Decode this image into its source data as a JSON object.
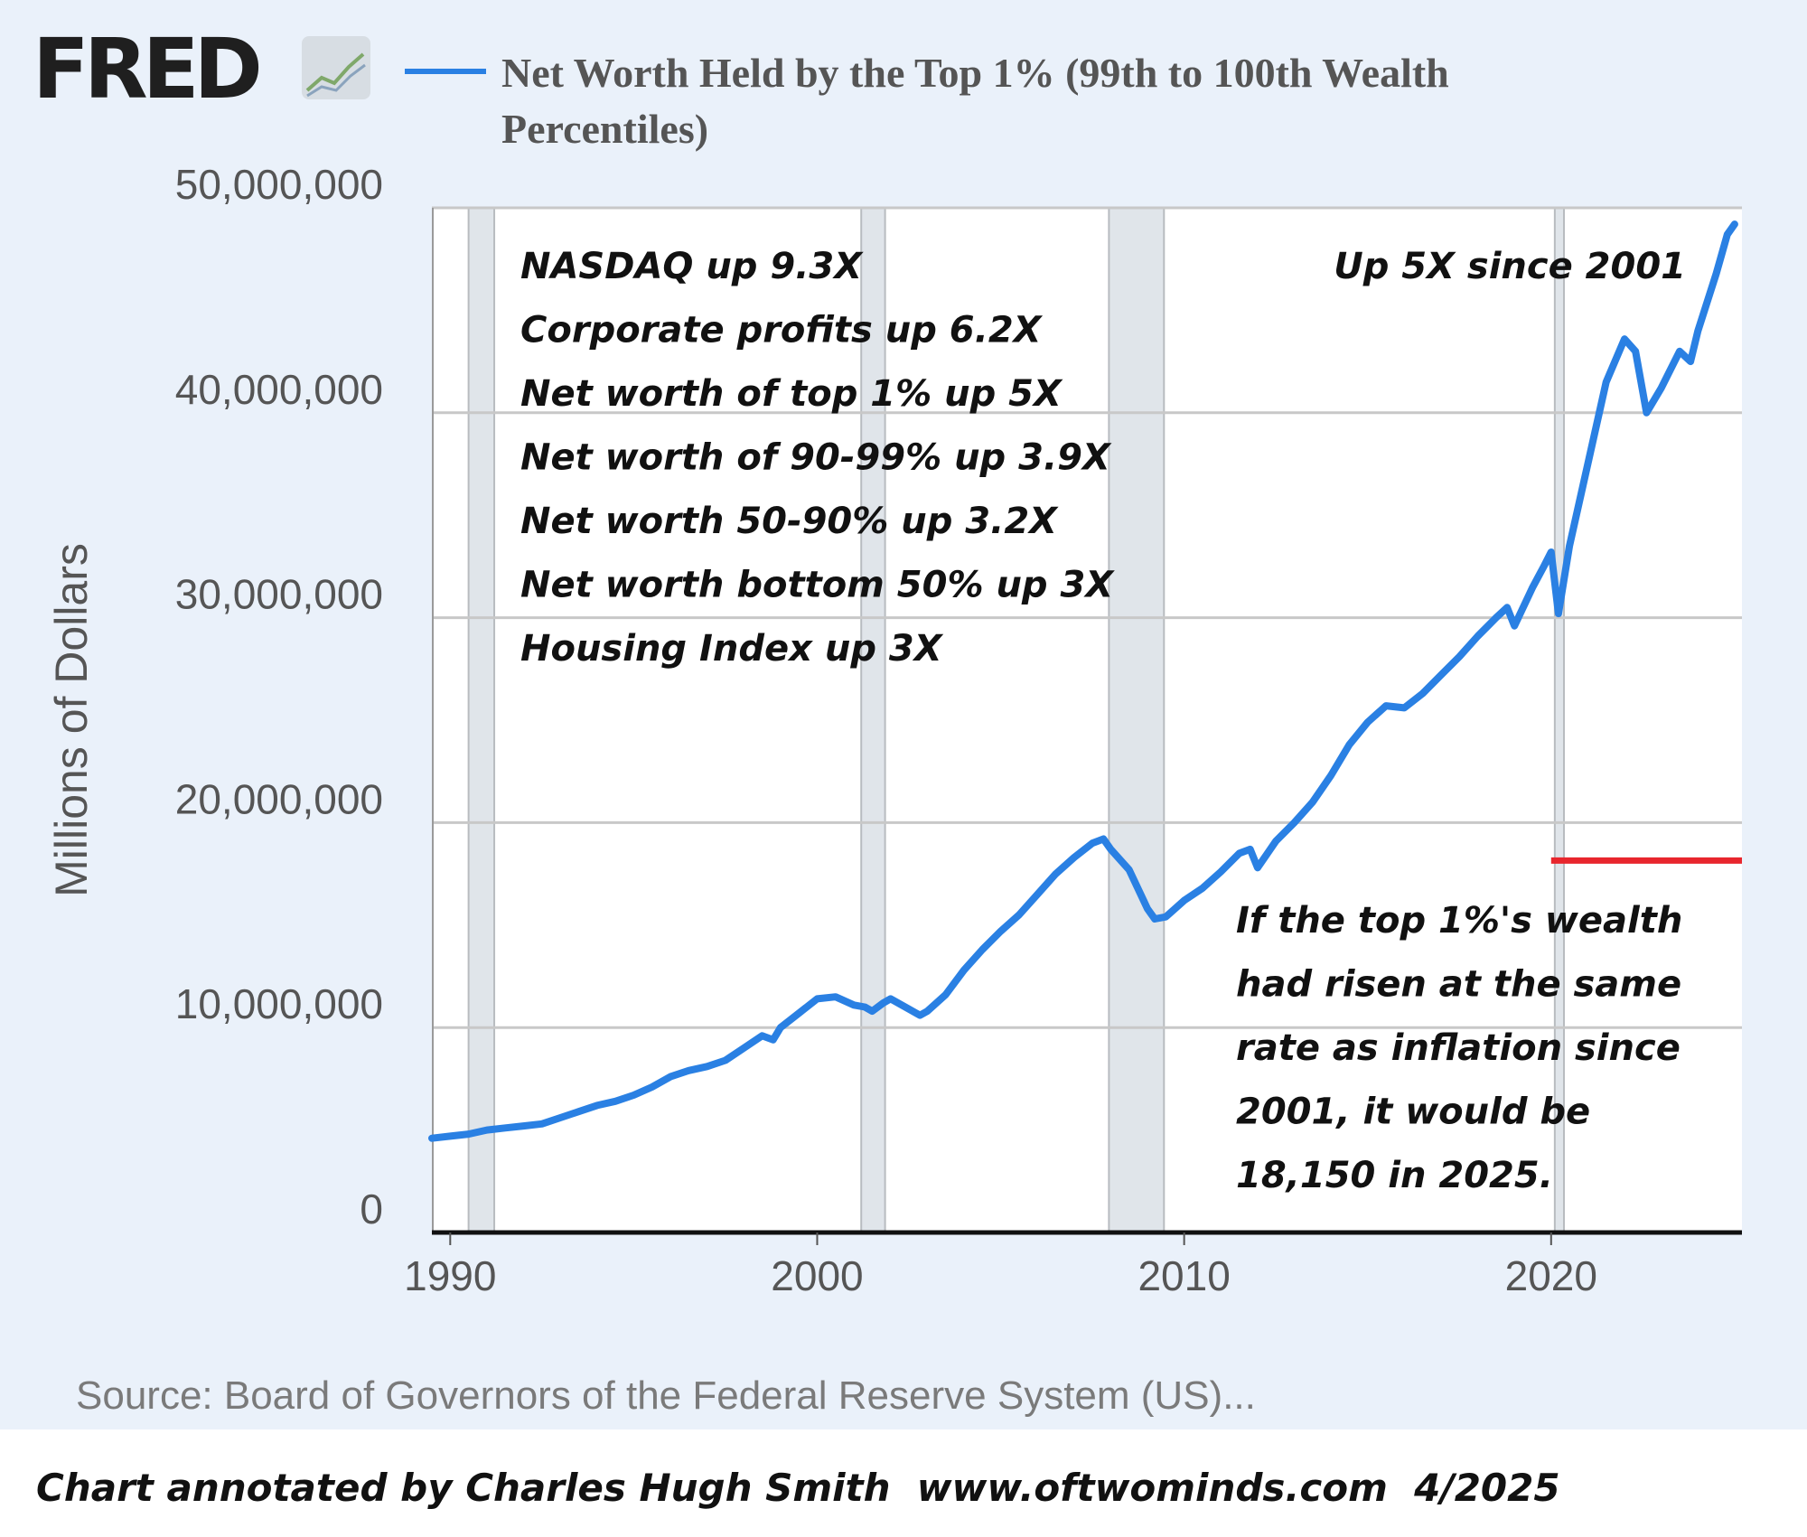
{
  "header": {
    "logo_text": "FRED",
    "logo_icon": "chart-line-icon"
  },
  "colors": {
    "panel_bg": "#eaf1fa",
    "series_line": "#2a80e3",
    "recession_band": "#e0e5ea",
    "gridline": "#c8c8c8",
    "reference_line": "#e8262d"
  },
  "chart_data": {
    "type": "line",
    "title": "Net Worth Held by the Top 1% (99th to 100th Wealth Percentiles)",
    "xlabel": "",
    "ylabel": "Millions of Dollars",
    "xlim": [
      1989.5,
      2025.2
    ],
    "ylim": [
      0,
      50000000
    ],
    "x_ticks": [
      1990,
      2000,
      2010,
      2020
    ],
    "x_tick_labels": [
      "1990",
      "2000",
      "2010",
      "2020"
    ],
    "y_ticks": [
      0,
      10000000,
      20000000,
      30000000,
      40000000,
      50000000
    ],
    "y_tick_labels": [
      "0",
      "10,000,000",
      "20,000,000",
      "30,000,000",
      "40,000,000",
      "50,000,000"
    ],
    "grid": true,
    "recessions": [
      [
        1990.5,
        1991.2
      ],
      [
        2001.2,
        2001.85
      ],
      [
        2007.95,
        2009.45
      ],
      [
        2020.1,
        2020.35
      ]
    ],
    "series": [
      {
        "name": "Net Worth Held by the Top 1% (99th to 100th Wealth Percentiles)",
        "x": [
          1989.5,
          1990.0,
          1990.5,
          1991.0,
          1991.5,
          1992.0,
          1992.5,
          1993.0,
          1993.5,
          1994.0,
          1994.5,
          1995.0,
          1995.5,
          1996.0,
          1996.5,
          1997.0,
          1997.5,
          1998.0,
          1998.5,
          1998.8,
          1999.0,
          1999.5,
          2000.0,
          2000.5,
          2001.0,
          2001.3,
          2001.5,
          2001.8,
          2002.0,
          2002.5,
          2002.8,
          2003.0,
          2003.5,
          2004.0,
          2004.5,
          2005.0,
          2005.5,
          2006.0,
          2006.5,
          2007.0,
          2007.5,
          2007.8,
          2008.0,
          2008.5,
          2009.0,
          2009.2,
          2009.5,
          2010.0,
          2010.5,
          2011.0,
          2011.5,
          2011.8,
          2012.0,
          2012.5,
          2013.0,
          2013.5,
          2014.0,
          2014.5,
          2015.0,
          2015.5,
          2016.0,
          2016.5,
          2017.0,
          2017.5,
          2018.0,
          2018.5,
          2018.8,
          2019.0,
          2019.5,
          2019.8,
          2020.0,
          2020.2,
          2020.5,
          2021.0,
          2021.5,
          2022.0,
          2022.3,
          2022.6,
          2023.0,
          2023.5,
          2023.8,
          2024.0,
          2024.5,
          2024.8,
          2025.0
        ],
        "values": [
          4600000,
          4700000,
          4800000,
          5000000,
          5100000,
          5200000,
          5300000,
          5600000,
          5900000,
          6200000,
          6400000,
          6700000,
          7100000,
          7600000,
          7900000,
          8100000,
          8400000,
          9000000,
          9600000,
          9400000,
          10000000,
          10700000,
          11400000,
          11500000,
          11100000,
          11000000,
          10800000,
          11200000,
          11400000,
          10900000,
          10600000,
          10800000,
          11600000,
          12800000,
          13800000,
          14700000,
          15500000,
          16500000,
          17500000,
          18300000,
          19000000,
          19200000,
          18700000,
          17700000,
          15800000,
          15300000,
          15400000,
          16200000,
          16800000,
          17600000,
          18500000,
          18700000,
          17800000,
          19100000,
          20000000,
          21000000,
          22300000,
          23800000,
          24900000,
          25700000,
          25600000,
          26300000,
          27200000,
          28100000,
          29100000,
          30000000,
          30500000,
          29600000,
          31500000,
          32500000,
          33200000,
          30200000,
          33500000,
          37500000,
          41500000,
          43600000,
          43000000,
          40000000,
          41200000,
          43000000,
          42500000,
          44000000,
          46800000,
          48700000,
          49200000
        ]
      }
    ],
    "reference_line": {
      "x_start": 2020.0,
      "x_end": 2025.2,
      "value": 18150000
    },
    "annotations": {
      "left_block": [
        "NASDAQ up 9.3X",
        "Corporate profits up 6.2X",
        "Net worth of top 1% up 5X",
        "Net worth of 90-99% up 3.9X",
        "Net worth 50-90% up 3.2X",
        "Net worth bottom 50% up 3X",
        "Housing Index up 3X"
      ],
      "top_right": "Up 5X since 2001",
      "bottom_right": [
        "If the top 1%'s wealth",
        "had risen at the same",
        "rate as inflation since",
        "2001, it would be",
        "18,150 in 2025."
      ]
    }
  },
  "footer": {
    "source": "Source: Board of Governors of the Federal Reserve System (US)...",
    "credit": "Chart annotated by Charles Hugh Smith  www.oftwominds.com  4/2025"
  }
}
